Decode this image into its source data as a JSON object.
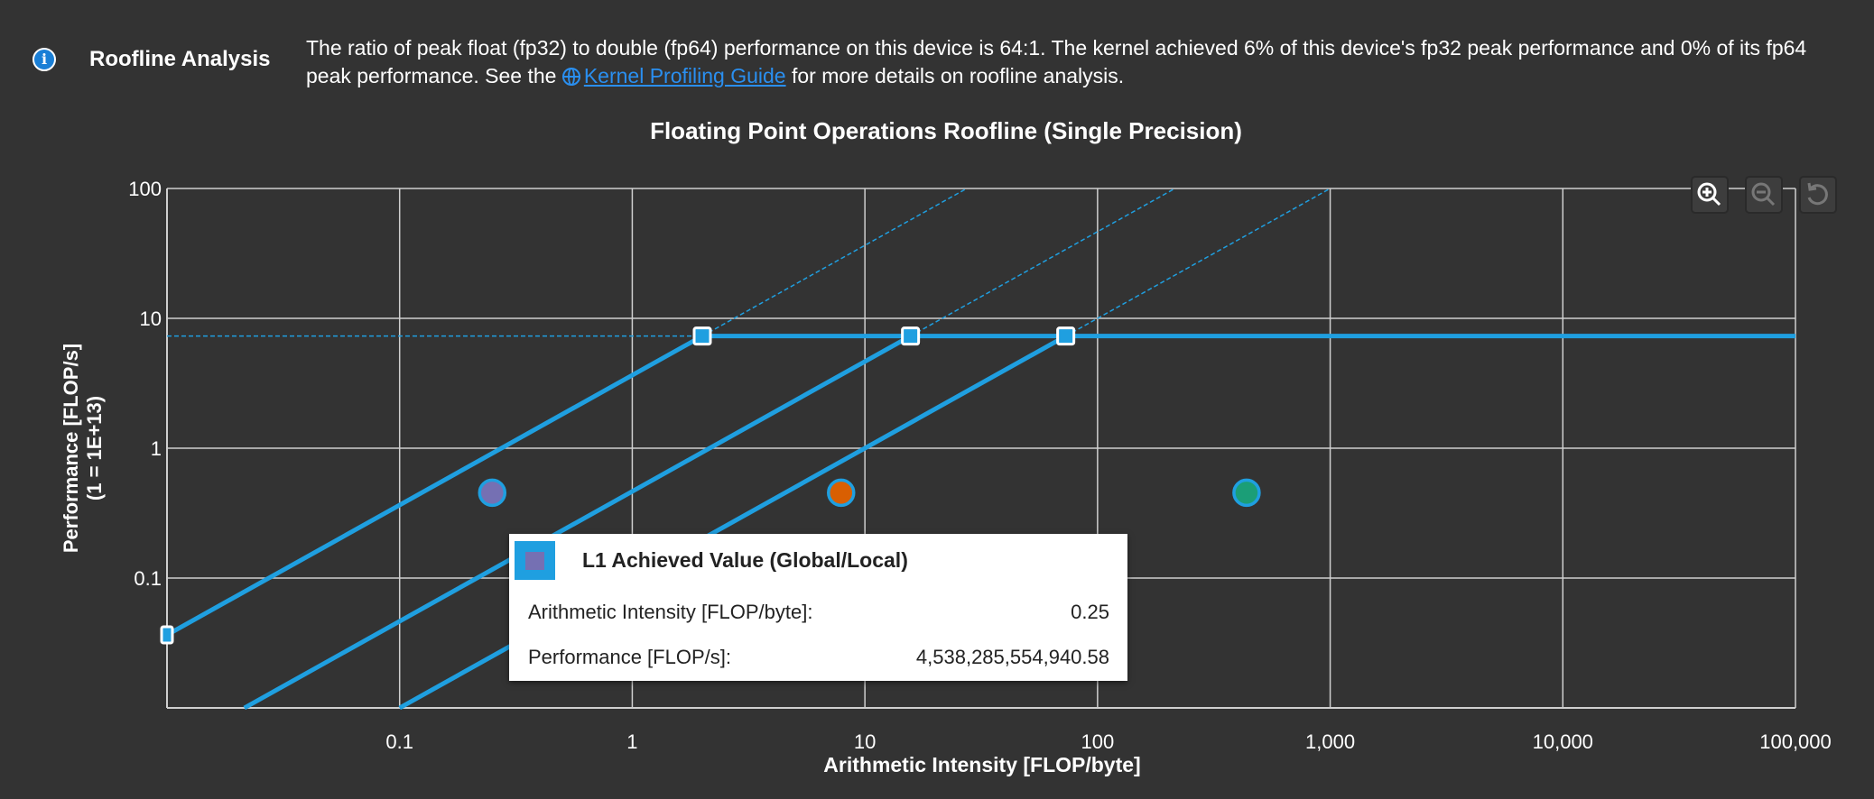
{
  "header": {
    "icon": "info-icon",
    "section_title": "Roofline Analysis",
    "text_before_link": "The ratio of peak float (fp32) to double (fp64) performance on this device is 64:1. The kernel achieved 6% of this device's fp32 peak performance and 0% of its fp64 peak performance. See the ",
    "link_icon": "globe-icon",
    "link_text": "Kernel Profiling Guide",
    "text_after_link": " for more details on roofline analysis."
  },
  "toolbar": {
    "buttons": [
      {
        "icon": "zoom-in-icon",
        "enabled": true
      },
      {
        "icon": "zoom-out-icon",
        "enabled": false
      },
      {
        "icon": "reset-icon",
        "enabled": false
      }
    ]
  },
  "chart_data": {
    "type": "line",
    "title": "Floating Point Operations Roofline (Single Precision)",
    "xlabel": "Arithmetic Intensity [FLOP/byte]",
    "ylabel": "Performance [FLOP/s]",
    "ylabel2": "(1 = 1E+13)",
    "xscale": "log",
    "yscale": "log",
    "xlim": [
      0.01,
      100000
    ],
    "ylim": [
      0.01,
      100
    ],
    "xticks": [
      {
        "v": 0.1,
        "label": "0.1"
      },
      {
        "v": 1,
        "label": "1"
      },
      {
        "v": 10,
        "label": "10"
      },
      {
        "v": 100,
        "label": "100"
      },
      {
        "v": 1000,
        "label": "1,000"
      },
      {
        "v": 10000,
        "label": "10,000"
      },
      {
        "v": 100000,
        "label": "100,000"
      }
    ],
    "yticks": [
      {
        "v": 0.1,
        "label": "0.1"
      },
      {
        "v": 1,
        "label": "1"
      },
      {
        "v": 10,
        "label": "10"
      },
      {
        "v": 100,
        "label": "100"
      }
    ],
    "grid": true,
    "peak_performance": 7.3,
    "rooflines": [
      {
        "ridge_x": 2.0
      },
      {
        "ridge_x": 15.7
      },
      {
        "ridge_x": 73
      }
    ],
    "roof_color": "#1f9fe0",
    "points": [
      {
        "x": 0.25,
        "y": 0.454,
        "color": "#7570b3"
      },
      {
        "x": 7.9,
        "y": 0.454,
        "color": "#d95f02"
      },
      {
        "x": 437,
        "y": 0.454,
        "color": "#1b9e77"
      }
    ]
  },
  "tooltip": {
    "title": "L1 Achieved Value (Global/Local)",
    "swatch_color": "#7570b3",
    "rows": [
      {
        "label": "Arithmetic Intensity [FLOP/byte]:",
        "value": "0.25"
      },
      {
        "label": "Performance [FLOP/s]:",
        "value": "4,538,285,554,940.58"
      }
    ]
  }
}
